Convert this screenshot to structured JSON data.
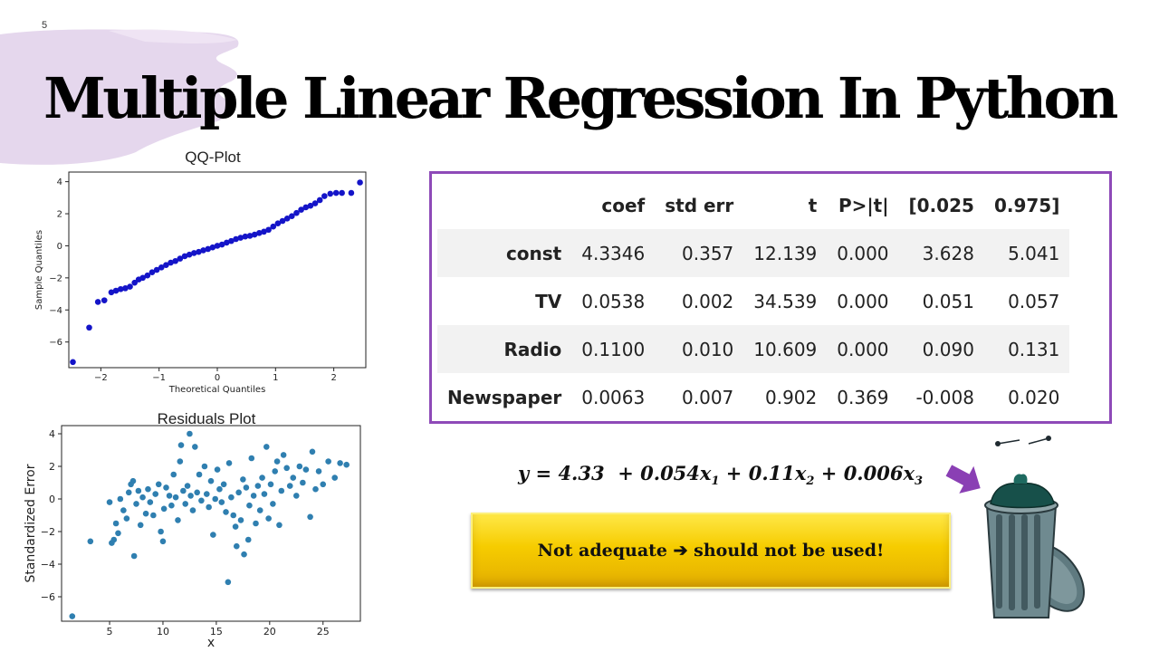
{
  "slide_number": "5",
  "title": "Multiple Linear Regression In Python",
  "colors": {
    "accent_purple": "#8e4ab8",
    "banner_yellow": "#f6cc00",
    "qq_points": "#1414c8",
    "residual_points": "#2f7fb0"
  },
  "qq_plot": {
    "title": "QQ-Plot",
    "chart_data": {
      "type": "scatter",
      "title": "QQ-Plot",
      "xlabel": "Theoretical Quantiles",
      "ylabel": "Sample Quantiles",
      "xlim": [
        -2.55,
        2.55
      ],
      "ylim": [
        -7.6,
        4.6
      ],
      "xticks": [
        -2,
        -1,
        0,
        1,
        2
      ],
      "yticks": [
        -6,
        -4,
        -2,
        0,
        2,
        4
      ],
      "points": [
        [
          -2.48,
          -7.25
        ],
        [
          -2.2,
          -5.1
        ],
        [
          -2.05,
          -3.5
        ],
        [
          -1.94,
          -3.4
        ],
        [
          -1.82,
          -2.9
        ],
        [
          -1.74,
          -2.8
        ],
        [
          -1.66,
          -2.7
        ],
        [
          -1.58,
          -2.65
        ],
        [
          -1.5,
          -2.55
        ],
        [
          -1.42,
          -2.3
        ],
        [
          -1.35,
          -2.1
        ],
        [
          -1.28,
          -2.0
        ],
        [
          -1.2,
          -1.85
        ],
        [
          -1.12,
          -1.65
        ],
        [
          -1.04,
          -1.5
        ],
        [
          -0.96,
          -1.35
        ],
        [
          -0.88,
          -1.2
        ],
        [
          -0.8,
          -1.05
        ],
        [
          -0.72,
          -0.95
        ],
        [
          -0.64,
          -0.8
        ],
        [
          -0.56,
          -0.65
        ],
        [
          -0.48,
          -0.55
        ],
        [
          -0.4,
          -0.45
        ],
        [
          -0.32,
          -0.38
        ],
        [
          -0.24,
          -0.28
        ],
        [
          -0.16,
          -0.2
        ],
        [
          -0.08,
          -0.1
        ],
        [
          0.0,
          0.0
        ],
        [
          0.08,
          0.08
        ],
        [
          0.16,
          0.2
        ],
        [
          0.24,
          0.3
        ],
        [
          0.32,
          0.42
        ],
        [
          0.4,
          0.5
        ],
        [
          0.48,
          0.58
        ],
        [
          0.56,
          0.62
        ],
        [
          0.64,
          0.7
        ],
        [
          0.72,
          0.8
        ],
        [
          0.8,
          0.88
        ],
        [
          0.88,
          1.0
        ],
        [
          0.96,
          1.2
        ],
        [
          1.04,
          1.4
        ],
        [
          1.12,
          1.55
        ],
        [
          1.2,
          1.7
        ],
        [
          1.28,
          1.85
        ],
        [
          1.36,
          2.05
        ],
        [
          1.44,
          2.25
        ],
        [
          1.52,
          2.4
        ],
        [
          1.6,
          2.5
        ],
        [
          1.68,
          2.65
        ],
        [
          1.76,
          2.85
        ],
        [
          1.84,
          3.1
        ],
        [
          1.94,
          3.25
        ],
        [
          2.04,
          3.3
        ],
        [
          2.14,
          3.3
        ],
        [
          2.3,
          3.3
        ],
        [
          2.45,
          3.95
        ]
      ]
    }
  },
  "residuals_plot": {
    "title": "Residuals Plot",
    "chart_data": {
      "type": "scatter",
      "title": "Residuals Plot",
      "xlabel": "x",
      "ylabel": "Standardized Error",
      "xlim": [
        0.5,
        28.5
      ],
      "ylim": [
        -7.5,
        4.5
      ],
      "xticks": [
        5,
        10,
        15,
        20,
        25
      ],
      "yticks": [
        -6,
        -4,
        -2,
        0,
        2,
        4
      ],
      "points": [
        [
          1.5,
          -7.2
        ],
        [
          3.2,
          -2.6
        ],
        [
          5.0,
          -0.2
        ],
        [
          5.2,
          -2.7
        ],
        [
          5.4,
          -2.5
        ],
        [
          5.6,
          -1.5
        ],
        [
          5.8,
          -2.1
        ],
        [
          6.0,
          0.0
        ],
        [
          6.3,
          -0.7
        ],
        [
          6.6,
          -1.2
        ],
        [
          6.8,
          0.4
        ],
        [
          7.0,
          0.9
        ],
        [
          7.2,
          1.1
        ],
        [
          7.3,
          -3.5
        ],
        [
          7.5,
          -0.3
        ],
        [
          7.7,
          0.5
        ],
        [
          7.9,
          -1.6
        ],
        [
          8.1,
          0.1
        ],
        [
          8.4,
          -0.9
        ],
        [
          8.6,
          0.6
        ],
        [
          8.8,
          -0.2
        ],
        [
          9.1,
          -1.0
        ],
        [
          9.3,
          0.3
        ],
        [
          9.6,
          0.9
        ],
        [
          9.8,
          -2.0
        ],
        [
          10.0,
          -2.6
        ],
        [
          10.1,
          -0.6
        ],
        [
          10.3,
          0.7
        ],
        [
          10.6,
          0.2
        ],
        [
          10.8,
          -0.4
        ],
        [
          11.0,
          1.5
        ],
        [
          11.2,
          0.1
        ],
        [
          11.4,
          -1.3
        ],
        [
          11.6,
          2.3
        ],
        [
          11.7,
          3.3
        ],
        [
          11.9,
          0.5
        ],
        [
          12.1,
          -0.3
        ],
        [
          12.3,
          0.8
        ],
        [
          12.5,
          4.0
        ],
        [
          12.6,
          0.2
        ],
        [
          12.8,
          -0.7
        ],
        [
          13.0,
          3.2
        ],
        [
          13.2,
          0.4
        ],
        [
          13.4,
          1.5
        ],
        [
          13.6,
          -0.1
        ],
        [
          13.9,
          2.0
        ],
        [
          14.1,
          0.3
        ],
        [
          14.3,
          -0.5
        ],
        [
          14.5,
          1.1
        ],
        [
          14.7,
          -2.2
        ],
        [
          14.9,
          0.0
        ],
        [
          15.1,
          1.8
        ],
        [
          15.3,
          0.6
        ],
        [
          15.5,
          -0.2
        ],
        [
          15.7,
          0.9
        ],
        [
          15.9,
          -0.8
        ],
        [
          16.1,
          -5.1
        ],
        [
          16.2,
          2.2
        ],
        [
          16.4,
          0.1
        ],
        [
          16.6,
          -1.0
        ],
        [
          16.8,
          -1.7
        ],
        [
          16.9,
          -2.9
        ],
        [
          17.1,
          0.4
        ],
        [
          17.3,
          -1.3
        ],
        [
          17.5,
          1.2
        ],
        [
          17.6,
          -3.4
        ],
        [
          17.8,
          0.7
        ],
        [
          18.0,
          -2.5
        ],
        [
          18.1,
          -0.4
        ],
        [
          18.3,
          2.5
        ],
        [
          18.5,
          0.2
        ],
        [
          18.7,
          -1.5
        ],
        [
          18.9,
          0.8
        ],
        [
          19.1,
          -0.7
        ],
        [
          19.3,
          1.3
        ],
        [
          19.5,
          0.3
        ],
        [
          19.7,
          3.2
        ],
        [
          19.9,
          -1.2
        ],
        [
          20.1,
          0.9
        ],
        [
          20.3,
          -0.3
        ],
        [
          20.5,
          1.7
        ],
        [
          20.7,
          2.3
        ],
        [
          20.9,
          -1.6
        ],
        [
          21.1,
          0.5
        ],
        [
          21.3,
          2.7
        ],
        [
          21.6,
          1.9
        ],
        [
          21.9,
          0.8
        ],
        [
          22.2,
          1.3
        ],
        [
          22.5,
          0.2
        ],
        [
          22.8,
          2.0
        ],
        [
          23.1,
          1.0
        ],
        [
          23.4,
          1.8
        ],
        [
          23.8,
          -1.1
        ],
        [
          24.0,
          2.9
        ],
        [
          24.3,
          0.6
        ],
        [
          24.6,
          1.7
        ],
        [
          25.0,
          0.9
        ],
        [
          25.5,
          2.3
        ],
        [
          26.1,
          1.3
        ],
        [
          26.6,
          2.2
        ],
        [
          27.2,
          2.1
        ]
      ]
    }
  },
  "coef_table": {
    "headers": [
      "",
      "coef",
      "std err",
      "t",
      "P>|t|",
      "[0.025",
      "0.975]"
    ],
    "rows": [
      [
        "const",
        "4.3346",
        "0.357",
        "12.139",
        "0.000",
        "3.628",
        "5.041"
      ],
      [
        "TV",
        "0.0538",
        "0.002",
        "34.539",
        "0.000",
        "0.051",
        "0.057"
      ],
      [
        "Radio",
        "0.1100",
        "0.010",
        "10.609",
        "0.000",
        "0.090",
        "0.131"
      ],
      [
        "Newspaper",
        "0.0063",
        "0.007",
        "0.902",
        "0.369",
        "-0.008",
        "0.020"
      ]
    ]
  },
  "equation": {
    "lhs": "y",
    "eq": "=",
    "intercept": "4.33",
    "terms": [
      {
        "op": "+",
        "coef": "0.054",
        "var": "x",
        "sub": "1"
      },
      {
        "op": "+",
        "coef": "0.11",
        "var": "x",
        "sub": "2"
      },
      {
        "op": "+",
        "coef": "0.006",
        "var": "x",
        "sub": "3"
      }
    ]
  },
  "banner": {
    "text_before": "Not adequate ",
    "arrow": "➔",
    "text_after": " should not be used!"
  }
}
